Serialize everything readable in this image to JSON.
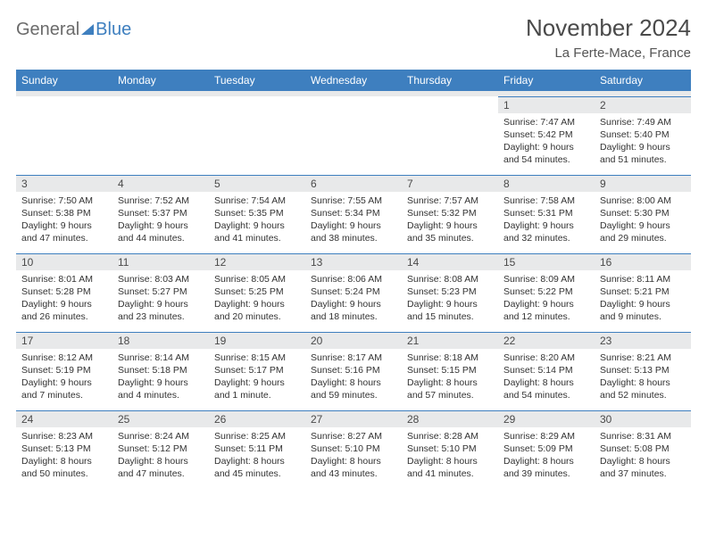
{
  "logo": {
    "part1": "General",
    "part2": "Blue"
  },
  "title": "November 2024",
  "location": "La Ferte-Mace, France",
  "headerColor": "#3e7fbf",
  "dayHeaderBg": "#e8e9ea",
  "daysOfWeek": [
    "Sunday",
    "Monday",
    "Tuesday",
    "Wednesday",
    "Thursday",
    "Friday",
    "Saturday"
  ],
  "weeks": [
    [
      null,
      null,
      null,
      null,
      null,
      {
        "n": "1",
        "sr": "7:47 AM",
        "ss": "5:42 PM",
        "dl": "9 hours and 54 minutes."
      },
      {
        "n": "2",
        "sr": "7:49 AM",
        "ss": "5:40 PM",
        "dl": "9 hours and 51 minutes."
      }
    ],
    [
      {
        "n": "3",
        "sr": "7:50 AM",
        "ss": "5:38 PM",
        "dl": "9 hours and 47 minutes."
      },
      {
        "n": "4",
        "sr": "7:52 AM",
        "ss": "5:37 PM",
        "dl": "9 hours and 44 minutes."
      },
      {
        "n": "5",
        "sr": "7:54 AM",
        "ss": "5:35 PM",
        "dl": "9 hours and 41 minutes."
      },
      {
        "n": "6",
        "sr": "7:55 AM",
        "ss": "5:34 PM",
        "dl": "9 hours and 38 minutes."
      },
      {
        "n": "7",
        "sr": "7:57 AM",
        "ss": "5:32 PM",
        "dl": "9 hours and 35 minutes."
      },
      {
        "n": "8",
        "sr": "7:58 AM",
        "ss": "5:31 PM",
        "dl": "9 hours and 32 minutes."
      },
      {
        "n": "9",
        "sr": "8:00 AM",
        "ss": "5:30 PM",
        "dl": "9 hours and 29 minutes."
      }
    ],
    [
      {
        "n": "10",
        "sr": "8:01 AM",
        "ss": "5:28 PM",
        "dl": "9 hours and 26 minutes."
      },
      {
        "n": "11",
        "sr": "8:03 AM",
        "ss": "5:27 PM",
        "dl": "9 hours and 23 minutes."
      },
      {
        "n": "12",
        "sr": "8:05 AM",
        "ss": "5:25 PM",
        "dl": "9 hours and 20 minutes."
      },
      {
        "n": "13",
        "sr": "8:06 AM",
        "ss": "5:24 PM",
        "dl": "9 hours and 18 minutes."
      },
      {
        "n": "14",
        "sr": "8:08 AM",
        "ss": "5:23 PM",
        "dl": "9 hours and 15 minutes."
      },
      {
        "n": "15",
        "sr": "8:09 AM",
        "ss": "5:22 PM",
        "dl": "9 hours and 12 minutes."
      },
      {
        "n": "16",
        "sr": "8:11 AM",
        "ss": "5:21 PM",
        "dl": "9 hours and 9 minutes."
      }
    ],
    [
      {
        "n": "17",
        "sr": "8:12 AM",
        "ss": "5:19 PM",
        "dl": "9 hours and 7 minutes."
      },
      {
        "n": "18",
        "sr": "8:14 AM",
        "ss": "5:18 PM",
        "dl": "9 hours and 4 minutes."
      },
      {
        "n": "19",
        "sr": "8:15 AM",
        "ss": "5:17 PM",
        "dl": "9 hours and 1 minute."
      },
      {
        "n": "20",
        "sr": "8:17 AM",
        "ss": "5:16 PM",
        "dl": "8 hours and 59 minutes."
      },
      {
        "n": "21",
        "sr": "8:18 AM",
        "ss": "5:15 PM",
        "dl": "8 hours and 57 minutes."
      },
      {
        "n": "22",
        "sr": "8:20 AM",
        "ss": "5:14 PM",
        "dl": "8 hours and 54 minutes."
      },
      {
        "n": "23",
        "sr": "8:21 AM",
        "ss": "5:13 PM",
        "dl": "8 hours and 52 minutes."
      }
    ],
    [
      {
        "n": "24",
        "sr": "8:23 AM",
        "ss": "5:13 PM",
        "dl": "8 hours and 50 minutes."
      },
      {
        "n": "25",
        "sr": "8:24 AM",
        "ss": "5:12 PM",
        "dl": "8 hours and 47 minutes."
      },
      {
        "n": "26",
        "sr": "8:25 AM",
        "ss": "5:11 PM",
        "dl": "8 hours and 45 minutes."
      },
      {
        "n": "27",
        "sr": "8:27 AM",
        "ss": "5:10 PM",
        "dl": "8 hours and 43 minutes."
      },
      {
        "n": "28",
        "sr": "8:28 AM",
        "ss": "5:10 PM",
        "dl": "8 hours and 41 minutes."
      },
      {
        "n": "29",
        "sr": "8:29 AM",
        "ss": "5:09 PM",
        "dl": "8 hours and 39 minutes."
      },
      {
        "n": "30",
        "sr": "8:31 AM",
        "ss": "5:08 PM",
        "dl": "8 hours and 37 minutes."
      }
    ]
  ],
  "labels": {
    "sunrise": "Sunrise:",
    "sunset": "Sunset:",
    "daylight": "Daylight:"
  }
}
